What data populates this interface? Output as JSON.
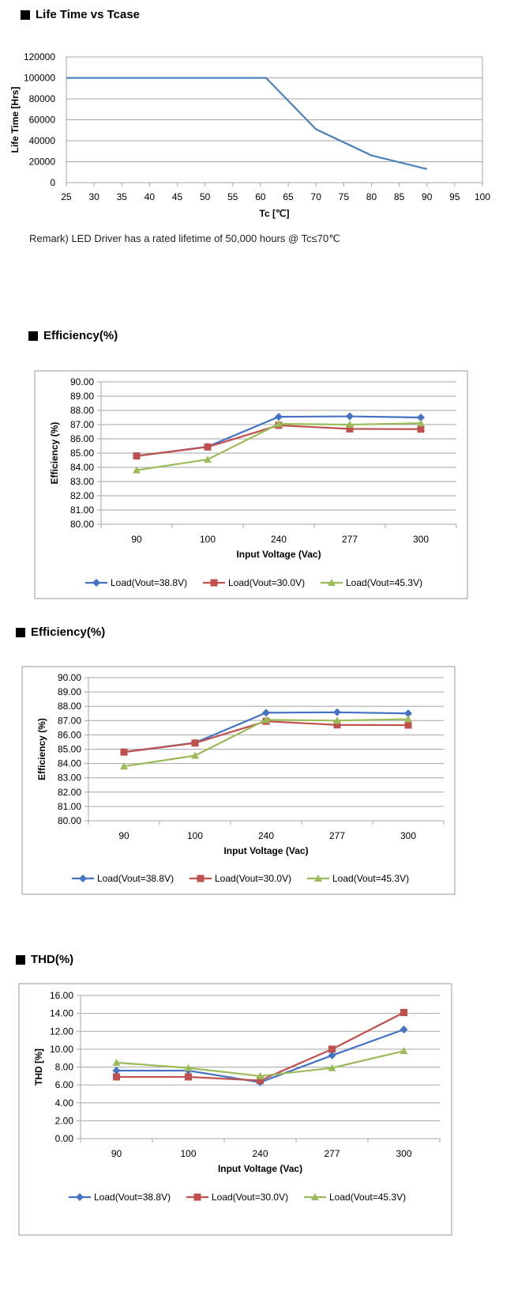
{
  "sections": [
    {
      "title": "Life Time vs Tcase"
    },
    {
      "title": "Efficiency(%)"
    },
    {
      "title": "Efficiency(%)"
    },
    {
      "title": "THD(%)"
    }
  ],
  "remark": "Remark) LED Driver has a rated lifetime of 50,000 hours @ Tc≤70℃",
  "colors": {
    "blue": "#4472C4",
    "red": "#C0504D",
    "green": "#9BBB59",
    "grid": "#A6A6A6",
    "line": "#4F81BD"
  },
  "chart_data": [
    {
      "type": "line",
      "title": "",
      "xlabel": "Tc [℃]",
      "ylabel": "Life Time [Hrs]",
      "xlim": [
        25,
        100
      ],
      "ylim": [
        0,
        120000
      ],
      "x_ticks": [
        "25",
        "30",
        "35",
        "40",
        "45",
        "50",
        "55",
        "60",
        "65",
        "70",
        "75",
        "80",
        "85",
        "90",
        "95",
        "100"
      ],
      "y_ticks": [
        "0",
        "20000",
        "40000",
        "60000",
        "80000",
        "100000",
        "120000"
      ],
      "series": [
        {
          "x": [
            25,
            61,
            70,
            80,
            90
          ],
          "y": [
            100000,
            100000,
            51000,
            26000,
            13000
          ]
        }
      ],
      "grid": "horizontal"
    },
    {
      "type": "line",
      "xlabel": "Input Voltage (Vac)",
      "ylabel": "Efficiency (%)",
      "ylim": [
        80,
        90
      ],
      "categories": [
        "90",
        "100",
        "240",
        "277",
        "300"
      ],
      "y_ticks": [
        "80.00",
        "81.00",
        "82.00",
        "83.00",
        "84.00",
        "85.00",
        "86.00",
        "87.00",
        "88.00",
        "89.00",
        "90.00"
      ],
      "series": [
        {
          "name": "Load(Vout=38.8V)",
          "values": [
            84.8,
            85.45,
            87.55,
            87.58,
            87.5
          ]
        },
        {
          "name": "Load(Vout=30.0V)",
          "values": [
            84.8,
            85.43,
            86.95,
            86.7,
            86.68
          ]
        },
        {
          "name": "Load(Vout=45.3V)",
          "values": [
            83.8,
            84.55,
            87.05,
            87.0,
            87.1
          ]
        }
      ],
      "legend": "bottom"
    },
    {
      "type": "line",
      "xlabel": "Input Voltage (Vac)",
      "ylabel": "Efficiency (%)",
      "ylim": [
        80,
        90
      ],
      "categories": [
        "90",
        "100",
        "240",
        "277",
        "300"
      ],
      "y_ticks": [
        "80.00",
        "81.00",
        "82.00",
        "83.00",
        "84.00",
        "85.00",
        "86.00",
        "87.00",
        "88.00",
        "89.00",
        "90.00"
      ],
      "series": [
        {
          "name": "Load(Vout=38.8V)",
          "values": [
            84.8,
            85.45,
            87.55,
            87.58,
            87.5
          ]
        },
        {
          "name": "Load(Vout=30.0V)",
          "values": [
            84.8,
            85.43,
            86.95,
            86.7,
            86.68
          ]
        },
        {
          "name": "Load(Vout=45.3V)",
          "values": [
            83.8,
            84.55,
            87.05,
            87.0,
            87.1
          ]
        }
      ],
      "legend": "bottom"
    },
    {
      "type": "line",
      "xlabel": "Input Voltage (Vac)",
      "ylabel": "THD [%]",
      "ylim": [
        0,
        16
      ],
      "categories": [
        "90",
        "100",
        "240",
        "277",
        "300"
      ],
      "y_ticks": [
        "0.00",
        "2.00",
        "4.00",
        "6.00",
        "8.00",
        "10.00",
        "12.00",
        "14.00",
        "16.00"
      ],
      "series": [
        {
          "name": "Load(Vout=38.8V)",
          "values": [
            7.6,
            7.6,
            6.3,
            9.3,
            12.2
          ]
        },
        {
          "name": "Load(Vout=30.0V)",
          "values": [
            6.9,
            6.9,
            6.5,
            10.0,
            14.1
          ]
        },
        {
          "name": "Load(Vout=45.3V)",
          "values": [
            8.5,
            7.9,
            7.0,
            7.9,
            9.8
          ]
        }
      ],
      "legend": "bottom"
    }
  ]
}
